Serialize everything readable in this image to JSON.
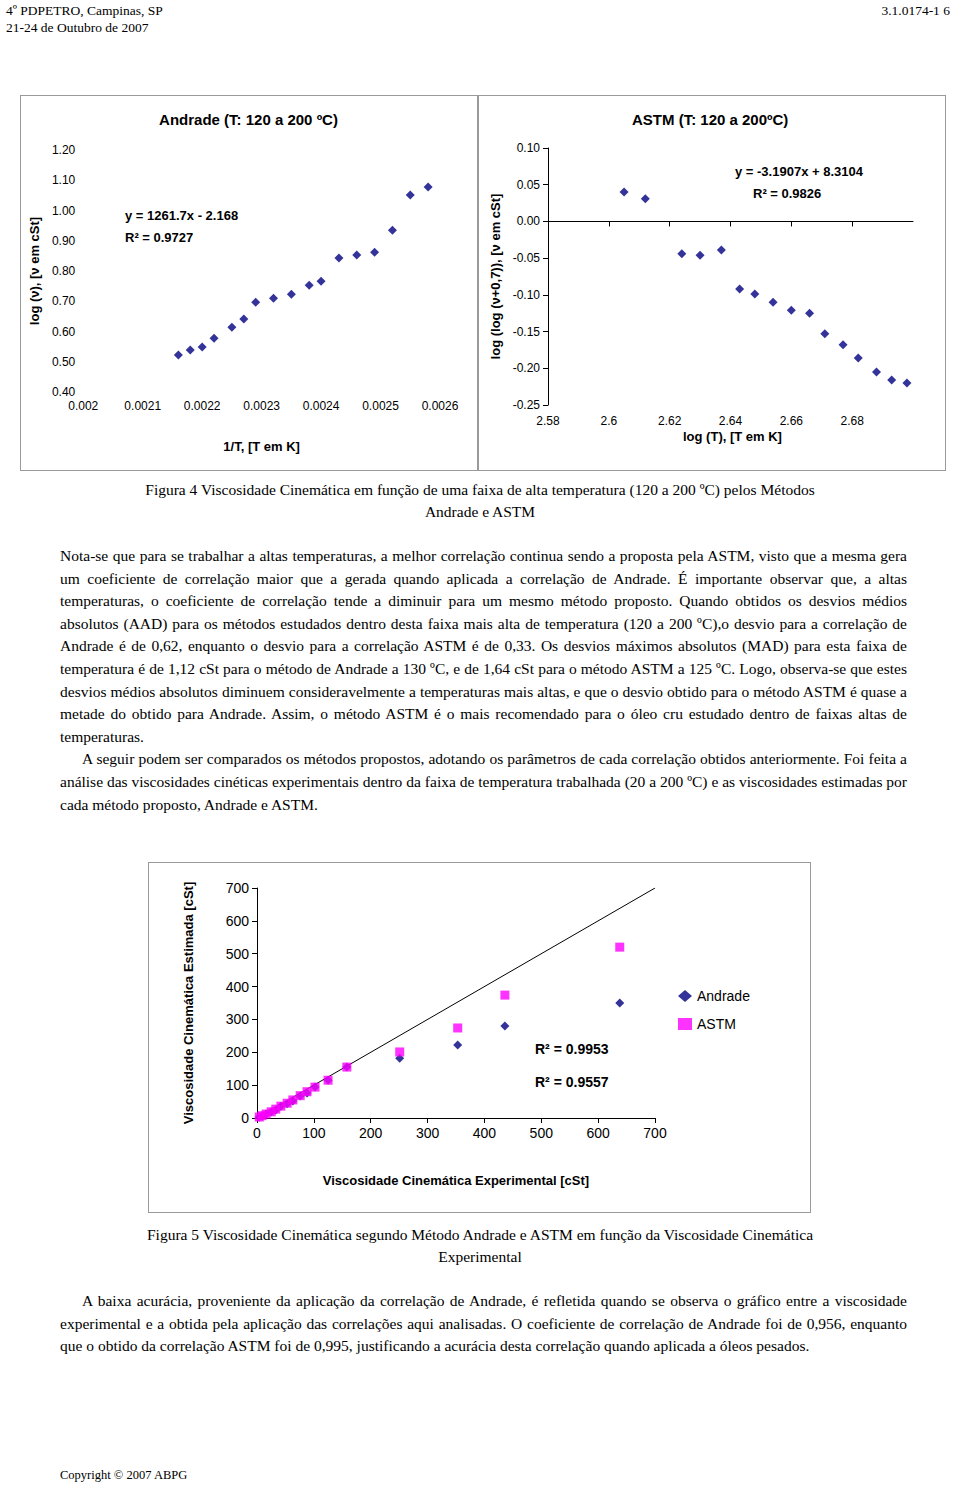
{
  "header": {
    "left": [
      "4º PDPETRO, Campinas, SP",
      "21-24 de Outubro de 2007"
    ],
    "right": "3.1.0174-1 6"
  },
  "chart_data": [
    {
      "type": "scatter",
      "title": "Andrade (T: 120 a 200 ºC)",
      "x_label": "1/T, [T em K]",
      "y_label": "log (ν), [ν em cSt]",
      "x": [
        0.00216,
        0.00218,
        0.0022,
        0.00222,
        0.00225,
        0.00227,
        0.00229,
        0.00232,
        0.00235,
        0.00238,
        0.0024,
        0.00243,
        0.00246,
        0.00249,
        0.00252,
        0.00255,
        0.00258
      ],
      "values": [
        0.522,
        0.539,
        0.549,
        0.578,
        0.614,
        0.641,
        0.697,
        0.71,
        0.723,
        0.753,
        0.766,
        0.843,
        0.853,
        0.862,
        0.935,
        1.051,
        1.078
      ],
      "color": "#000080",
      "marker": "diamond",
      "xlim": [
        0.002,
        0.0026
      ],
      "xticks": [
        0.002,
        0.0021,
        0.0022,
        0.0023,
        0.0024,
        0.0025,
        0.0026
      ],
      "ylim": [
        0.4,
        1.2
      ],
      "yticks": [
        {
          "value": 0.4,
          "label": "0.40"
        },
        {
          "value": 0.5,
          "label": "0.50"
        },
        {
          "value": 0.6,
          "label": "0.60"
        },
        {
          "value": 0.7,
          "label": "0.70"
        },
        {
          "value": 0.8,
          "label": "0.80"
        },
        {
          "value": 0.9,
          "label": "0.90"
        },
        {
          "value": 1.0,
          "label": "1.00"
        },
        {
          "value": 1.1,
          "label": "1.10"
        },
        {
          "value": 1.2,
          "label": "1.20"
        }
      ],
      "annotations": [
        "y = 1261.7x - 2.168",
        "R² = 0.9727"
      ],
      "grid": false
    },
    {
      "type": "scatter",
      "title": "ASTM (T: 120 a 200ºC)",
      "x_label": "log (T), [T em K]",
      "y_label": "log (log (ν+0,7)), [ν em cSt]",
      "x": [
        2.605,
        2.612,
        2.624,
        2.63,
        2.637,
        2.643,
        2.648,
        2.654,
        2.66,
        2.666,
        2.671,
        2.677,
        2.682,
        2.688,
        2.693,
        2.698
      ],
      "values": [
        0.04,
        0.031,
        -0.044,
        -0.046,
        -0.039,
        -0.092,
        -0.099,
        -0.11,
        -0.121,
        -0.125,
        -0.153,
        -0.168,
        -0.186,
        -0.205,
        -0.216,
        -0.22
      ],
      "color": "#000080",
      "marker": "diamond",
      "xlim": [
        2.58,
        2.7
      ],
      "xticks": [
        2.58,
        2.6,
        2.62,
        2.64,
        2.66,
        2.68
      ],
      "ylim": [
        -0.25,
        0.1
      ],
      "yticks": [
        {
          "value": -0.25,
          "label": "-0.25"
        },
        {
          "value": -0.2,
          "label": "-0.20"
        },
        {
          "value": -0.15,
          "label": "-0.15"
        },
        {
          "value": -0.1,
          "label": "-0.10"
        },
        {
          "value": -0.05,
          "label": "-0.05"
        },
        {
          "value": 0,
          "label": "0.00"
        },
        {
          "value": 0.05,
          "label": "0.05"
        },
        {
          "value": 0.1,
          "label": "0.10"
        }
      ],
      "annotations": [
        "y = -3.1907x + 8.3104",
        "R² = 0.9826"
      ],
      "grid": false
    },
    {
      "type": "scatter",
      "x_label": "Viscosidade Cinemática Experimental [cSt]",
      "y_label": "Viscosidade Cinemática Estimada [cSt]",
      "series": [
        {
          "name": "Andrade",
          "color": "#000080",
          "marker": "diamond",
          "x": [
            638,
            436,
            353,
            251,
            158,
            125,
            102,
            88,
            76,
            63,
            53,
            42,
            33,
            25,
            16,
            9,
            4
          ],
          "values": [
            350,
            280,
            222,
            182,
            155,
            115,
            94,
            76,
            67,
            52,
            43,
            36,
            24,
            18,
            12,
            6,
            3
          ]
        },
        {
          "name": "ASTM",
          "color": "#ff00ff",
          "marker": "square",
          "x": [
            638,
            436,
            353,
            251,
            158,
            125,
            102,
            88,
            76,
            63,
            53,
            42,
            33,
            25,
            16,
            9,
            4
          ],
          "values": [
            520,
            374,
            274,
            201,
            155,
            115,
            94,
            80,
            68,
            55,
            45,
            36,
            27,
            19,
            12,
            7,
            3
          ]
        }
      ],
      "reference_line": {
        "x": [
          0,
          700
        ],
        "values": [
          0,
          700
        ],
        "color": "#000000"
      },
      "xlim": [
        0,
        700
      ],
      "xticks": [
        0,
        100,
        200,
        300,
        400,
        500,
        600,
        700
      ],
      "ylim": [
        0,
        700
      ],
      "yticks": [
        0,
        100,
        200,
        300,
        400,
        500,
        600,
        700
      ],
      "annotations": [
        "R² = 0.9953",
        "R² = 0.9557"
      ],
      "legend": "right",
      "grid": false
    }
  ],
  "captions": [
    "Figura 4 Viscosidade Cinemática em função de uma faixa de alta temperatura (120 a 200 ºC) pelos Métodos Andrade e ASTM",
    "Figura 5 Viscosidade Cinemática segundo Método Andrade e ASTM em função da Viscosidade Cinemática Experimental"
  ],
  "paragraphs": [
    "Nota-se que para se trabalhar a altas temperaturas, a melhor correlação continua sendo a proposta pela ASTM, visto que a mesma gera um coeficiente de correlação maior que a gerada quando aplicada a correlação de Andrade. É importante observar que, a altas temperaturas, o coeficiente de correlação tende a diminuir para um mesmo método proposto. Quando obtidos os desvios médios absolutos (AAD) para os métodos estudados dentro desta faixa mais alta de temperatura (120 a 200 ºC),o desvio para a correlação de Andrade é de 0,62, enquanto o desvio para a correlação ASTM é de 0,33. Os desvios máximos absolutos (MAD) para esta faixa de temperatura é de 1,12 cSt para o método de Andrade a 130 ºC, e de 1,64 cSt para o método ASTM a 125 ºC. Logo, observa-se que estes desvios médios absolutos diminuem consideravelmente a temperaturas mais altas, e que o desvio obtido para o método ASTM é quase a metade do obtido para Andrade. Assim, o método ASTM é o mais recomendado para o óleo cru estudado dentro de faixas altas de temperaturas.",
    "A seguir podem ser comparados os métodos propostos, adotando os parâmetros de cada correlação obtidos anteriormente. Foi feita a análise das viscosidades cinéticas experimentais dentro da faixa de temperatura trabalhada (20 a 200 ºC) e as viscosidades estimadas por cada método proposto, Andrade e ASTM.",
    "A baixa acurácia, proveniente da aplicação da correlação de Andrade, é refletida quando se observa o gráfico entre a viscosidade experimental e a obtida pela aplicação das correlações aqui analisadas. O coeficiente de correlação de Andrade foi de 0,956, enquanto que o obtido da correlação ASTM foi de 0,995, justificando a acurácia desta correlação quando aplicada a óleos pesados."
  ],
  "footer": "Copyright © 2007 ABPG"
}
